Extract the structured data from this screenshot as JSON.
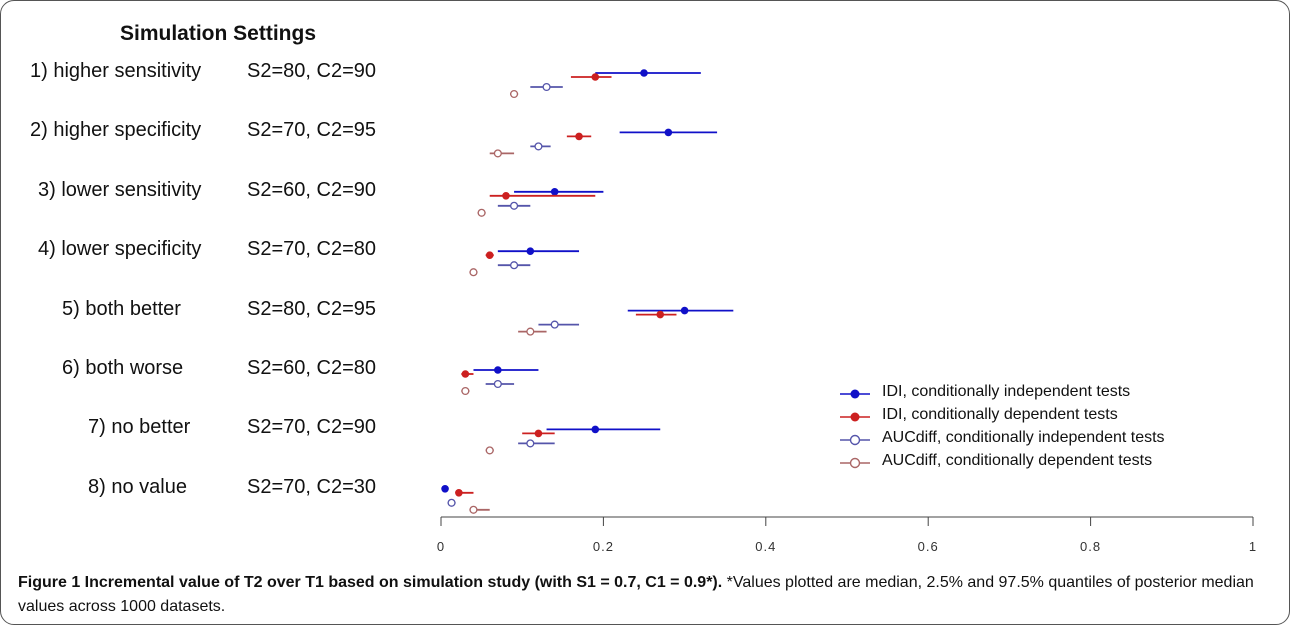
{
  "chart_data": {
    "type": "scatter",
    "heading": "Simulation Settings",
    "xlim": [
      0,
      1
    ],
    "x_ticks": [
      0,
      0.2,
      0.4,
      0.6,
      0.8,
      1
    ],
    "x_tick_labels": [
      "0",
      "0.2",
      "0.4",
      "0.6",
      "0.8",
      "1"
    ],
    "rows": [
      {
        "label": "1) higher sensitivity",
        "setting": "S2=80, C2=90"
      },
      {
        "label": "2) higher specificity",
        "setting": "S2=70, C2=95"
      },
      {
        "label": "3) lower sensitivity",
        "setting": "S2=60, C2=90"
      },
      {
        "label": "4) lower specificity",
        "setting": "S2=70, C2=80"
      },
      {
        "label": "5) both better",
        "setting": "S2=80, C2=95"
      },
      {
        "label": "6) both worse",
        "setting": "S2=60, C2=80"
      },
      {
        "label": "7) no better",
        "setting": "S2=70, C2=90"
      },
      {
        "label": "8) no value",
        "setting": "S2=70, C2=30"
      }
    ],
    "series": [
      {
        "name": "IDI, conditionally independent tests",
        "color": "#1010c8",
        "marker": "filled",
        "median": [
          0.25,
          0.28,
          0.14,
          0.11,
          0.3,
          0.07,
          0.19,
          0.005
        ],
        "lower": [
          0.19,
          0.22,
          0.09,
          0.07,
          0.23,
          0.04,
          0.13,
          0.003
        ],
        "upper": [
          0.32,
          0.34,
          0.2,
          0.17,
          0.36,
          0.12,
          0.27,
          0.007
        ]
      },
      {
        "name": "IDI, conditionally dependent tests",
        "color": "#cc2020",
        "marker": "filled",
        "median": [
          0.19,
          0.17,
          0.08,
          0.06,
          0.27,
          0.03,
          0.12,
          0.022
        ],
        "lower": [
          0.16,
          0.155,
          0.06,
          0.055,
          0.24,
          0.025,
          0.1,
          0.018
        ],
        "upper": [
          0.21,
          0.185,
          0.19,
          0.065,
          0.29,
          0.04,
          0.14,
          0.04
        ]
      },
      {
        "name": "AUCdiff, conditionally independent tests",
        "color": "#5555aa",
        "marker": "open",
        "median": [
          0.13,
          0.12,
          0.09,
          0.09,
          0.14,
          0.07,
          0.11,
          0.013
        ],
        "lower": [
          0.11,
          0.11,
          0.07,
          0.07,
          0.12,
          0.055,
          0.095,
          0.008
        ],
        "upper": [
          0.15,
          0.135,
          0.11,
          0.11,
          0.17,
          0.09,
          0.14,
          0.018
        ]
      },
      {
        "name": "AUCdiff, conditionally dependent tests",
        "color": "#aa6666",
        "marker": "open",
        "median": [
          0.09,
          0.07,
          0.05,
          0.04,
          0.11,
          0.03,
          0.06,
          0.04
        ],
        "lower": [
          0.085,
          0.06,
          0.045,
          0.035,
          0.095,
          0.025,
          0.055,
          0.035
        ],
        "upper": [
          0.095,
          0.09,
          0.055,
          0.045,
          0.13,
          0.035,
          0.065,
          0.06
        ]
      }
    ],
    "legend_position": "bottom-right"
  },
  "caption": {
    "bold": "Figure 1 Incremental value of T2 over T1 based on simulation study (with S1 = 0.7, C1 = 0.9*).",
    "rest": " *Values plotted are median, 2.5% and 97.5% quantiles of posterior median values across 1000 datasets."
  }
}
